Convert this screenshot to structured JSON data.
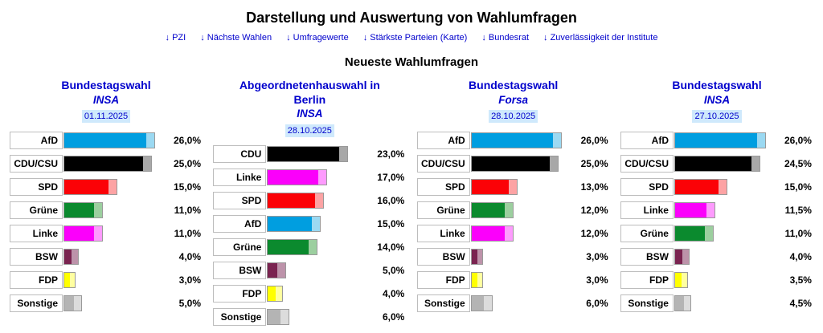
{
  "page": {
    "title": "Darstellung und Auswertung von Wahlumfragen",
    "subtitle": "Neueste Wahlumfragen"
  },
  "nav": {
    "links": [
      "↓ PZI",
      "↓ Nächste Wahlen",
      "↓ Umfragewerte",
      "↓ Stärkste Parteien (Karte)",
      "↓ Bundesrat",
      "↓ Zuverlässigkeit der Institute"
    ]
  },
  "colors": {
    "link": "#0000cc",
    "heading": "#0000cc",
    "date_highlight": "#cfe9fc"
  },
  "party_colors": {
    "AfD": {
      "main": "#009ee0",
      "tint": "#9bd9f2"
    },
    "CDU/CSU": {
      "main": "#000000",
      "tint": "#a8a8a8"
    },
    "CDU": {
      "main": "#000000",
      "tint": "#a8a8a8"
    },
    "SPD": {
      "main": "#fb0207",
      "tint": "#fda3a4"
    },
    "Grüne": {
      "main": "#0b8a2e",
      "tint": "#9ccf9f"
    },
    "Linke": {
      "main": "#fb00fb",
      "tint": "#fd9bfd"
    },
    "BSW": {
      "main": "#7a2350",
      "tint": "#bd93aa"
    },
    "FDP": {
      "main": "#ffff00",
      "tint": "#ffffa0"
    },
    "Sonstige": {
      "main": "#b4b4b4",
      "tint": "#dcdcdc"
    }
  },
  "chart_data": [
    {
      "type": "bar",
      "title": "Bundestagswahl",
      "institute": "INSA",
      "date": "01.11.2025",
      "ylabel": "%",
      "xlim": [
        0,
        30
      ],
      "categories": [
        "AfD",
        "CDU/CSU",
        "SPD",
        "Grüne",
        "Linke",
        "BSW",
        "FDP",
        "Sonstige"
      ],
      "values": [
        26.0,
        25.0,
        15.0,
        11.0,
        11.0,
        4.0,
        3.0,
        5.0
      ],
      "value_labels": [
        "26,0%",
        "25,0%",
        "15,0%",
        "11,0%",
        "11,0%",
        "4,0%",
        "3,0%",
        "5,0%"
      ]
    },
    {
      "type": "bar",
      "title": "Abgeordnetenhauswahl in Berlin",
      "institute": "INSA",
      "date": "28.10.2025",
      "ylabel": "%",
      "xlim": [
        0,
        30
      ],
      "categories": [
        "CDU",
        "Linke",
        "SPD",
        "AfD",
        "Grüne",
        "BSW",
        "FDP",
        "Sonstige"
      ],
      "values": [
        23.0,
        17.0,
        16.0,
        15.0,
        14.0,
        5.0,
        4.0,
        6.0
      ],
      "value_labels": [
        "23,0%",
        "17,0%",
        "16,0%",
        "15,0%",
        "14,0%",
        "5,0%",
        "4,0%",
        "6,0%"
      ]
    },
    {
      "type": "bar",
      "title": "Bundestagswahl",
      "institute": "Forsa",
      "date": "28.10.2025",
      "ylabel": "%",
      "xlim": [
        0,
        30
      ],
      "categories": [
        "AfD",
        "CDU/CSU",
        "SPD",
        "Grüne",
        "Linke",
        "BSW",
        "FDP",
        "Sonstige"
      ],
      "values": [
        26.0,
        25.0,
        13.0,
        12.0,
        12.0,
        3.0,
        3.0,
        6.0
      ],
      "value_labels": [
        "26,0%",
        "25,0%",
        "13,0%",
        "12,0%",
        "12,0%",
        "3,0%",
        "3,0%",
        "6,0%"
      ]
    },
    {
      "type": "bar",
      "title": "Bundestagswahl",
      "institute": "INSA",
      "date": "27.10.2025",
      "ylabel": "%",
      "xlim": [
        0,
        30
      ],
      "categories": [
        "AfD",
        "CDU/CSU",
        "SPD",
        "Linke",
        "Grüne",
        "BSW",
        "FDP",
        "Sonstige"
      ],
      "values": [
        26.0,
        24.5,
        15.0,
        11.5,
        11.0,
        4.0,
        3.5,
        4.5
      ],
      "value_labels": [
        "26,0%",
        "24,5%",
        "15,0%",
        "11,5%",
        "11,0%",
        "4,0%",
        "3,5%",
        "4,5%"
      ]
    }
  ]
}
